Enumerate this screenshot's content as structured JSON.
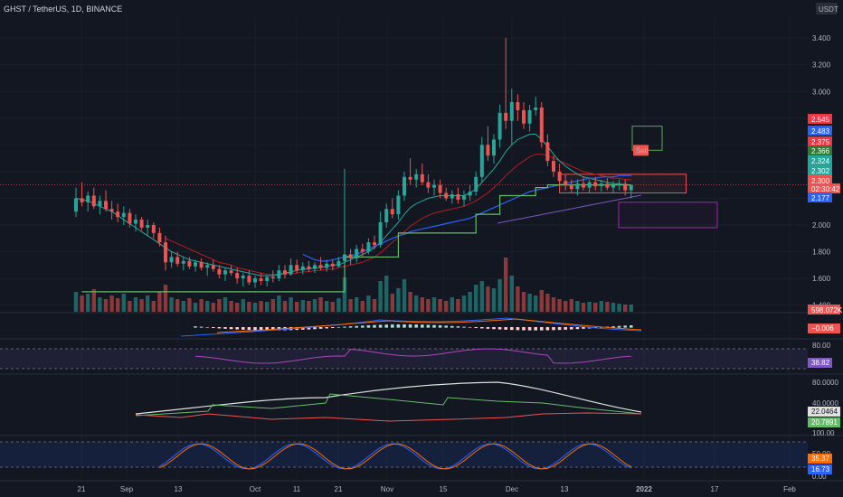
{
  "header": {
    "symbol_line": "GHST / TetherUS, 1D, BINANCE",
    "currency": "USDT"
  },
  "colors": {
    "background": "#131722",
    "up": "#26a69a",
    "down": "#ef5350",
    "grid": "#1e222d",
    "axis_text": "#b2b5be"
  },
  "chart_data": [
    {
      "type": "candlestick",
      "title": "",
      "price_axis": {
        "ticks": [
          1.4,
          1.6,
          1.8,
          2.0,
          2.2,
          2.4,
          2.6,
          2.8,
          3.0,
          3.2,
          3.4
        ],
        "tick_labels": [
          "1.400",
          "1.600",
          "1.800",
          "2.000",
          "2.200",
          "2.400",
          "2.600",
          "2.800",
          "3.000",
          "3.200",
          "3.400"
        ],
        "range": [
          1.35,
          3.55
        ],
        "top_partial_label": "3"
      },
      "time_axis": {
        "labels": [
          "21",
          "Sep",
          "13",
          "Oct",
          "11",
          "21",
          "Nov",
          "15",
          "Dec",
          "13",
          "2022",
          "17",
          "Feb"
        ]
      },
      "price_labels": [
        {
          "value": "2.545",
          "color": "#f23645"
        },
        {
          "value": "2.483",
          "color": "#2962ff"
        },
        {
          "value": "2.375",
          "color": "#f23645"
        },
        {
          "value": "2.366",
          "color": "#2e7d32"
        },
        {
          "value": "2.324",
          "color": "#26a69a"
        },
        {
          "value": "2.302",
          "color": "#26a69a"
        },
        {
          "value": "2.300",
          "color": "#ef5350"
        },
        {
          "value": "02:30:42",
          "color": "#ef5350"
        },
        {
          "value": "2.177",
          "color": "#2962ff"
        },
        {
          "value": "598.072K",
          "color": "#ef5350"
        }
      ],
      "annotation": "Sell",
      "candles": [
        [
          2.1,
          2.28,
          2.06,
          2.2
        ],
        [
          2.2,
          2.32,
          2.14,
          2.17
        ],
        [
          2.17,
          2.25,
          2.1,
          2.22
        ],
        [
          2.22,
          2.28,
          2.12,
          2.14
        ],
        [
          2.14,
          2.22,
          2.08,
          2.18
        ],
        [
          2.18,
          2.26,
          2.1,
          2.12
        ],
        [
          2.12,
          2.18,
          2.04,
          2.1
        ],
        [
          2.1,
          2.16,
          2.02,
          2.06
        ],
        [
          2.06,
          2.14,
          2.0,
          2.09
        ],
        [
          2.09,
          2.12,
          1.98,
          2.01
        ],
        [
          2.01,
          2.08,
          1.95,
          2.04
        ],
        [
          2.04,
          2.06,
          1.96,
          1.98
        ],
        [
          1.98,
          2.04,
          1.92,
          2.0
        ],
        [
          2.0,
          2.02,
          1.9,
          1.94
        ],
        [
          1.94,
          1.98,
          1.84,
          1.87
        ],
        [
          1.87,
          1.92,
          1.66,
          1.72
        ],
        [
          1.72,
          1.8,
          1.68,
          1.76
        ],
        [
          1.76,
          1.8,
          1.69,
          1.71
        ],
        [
          1.71,
          1.76,
          1.66,
          1.73
        ],
        [
          1.73,
          1.76,
          1.67,
          1.69
        ],
        [
          1.69,
          1.74,
          1.65,
          1.72
        ],
        [
          1.72,
          1.75,
          1.66,
          1.68
        ],
        [
          1.68,
          1.72,
          1.62,
          1.7
        ],
        [
          1.7,
          1.74,
          1.65,
          1.67
        ],
        [
          1.67,
          1.7,
          1.6,
          1.63
        ],
        [
          1.63,
          1.68,
          1.58,
          1.66
        ],
        [
          1.66,
          1.7,
          1.62,
          1.64
        ],
        [
          1.64,
          1.68,
          1.56,
          1.6
        ],
        [
          1.6,
          1.64,
          1.54,
          1.62
        ],
        [
          1.62,
          1.66,
          1.55,
          1.57
        ],
        [
          1.57,
          1.62,
          1.53,
          1.6
        ],
        [
          1.6,
          1.64,
          1.55,
          1.58
        ],
        [
          1.58,
          1.62,
          1.54,
          1.61
        ],
        [
          1.61,
          1.66,
          1.57,
          1.6
        ],
        [
          1.6,
          1.7,
          1.58,
          1.66
        ],
        [
          1.66,
          1.7,
          1.6,
          1.63
        ],
        [
          1.63,
          1.75,
          1.62,
          1.7
        ],
        [
          1.7,
          1.74,
          1.64,
          1.66
        ],
        [
          1.66,
          1.72,
          1.63,
          1.69
        ],
        [
          1.69,
          1.73,
          1.65,
          1.67
        ],
        [
          1.67,
          1.72,
          1.64,
          1.7
        ],
        [
          1.7,
          1.76,
          1.66,
          1.68
        ],
        [
          1.68,
          1.74,
          1.65,
          1.71
        ],
        [
          1.71,
          1.74,
          1.66,
          1.69
        ],
        [
          1.69,
          1.76,
          1.68,
          1.73
        ],
        [
          1.73,
          2.42,
          1.7,
          1.78
        ],
        [
          1.78,
          1.82,
          1.7,
          1.75
        ],
        [
          1.75,
          1.85,
          1.72,
          1.82
        ],
        [
          1.82,
          1.86,
          1.76,
          1.8
        ],
        [
          1.8,
          1.9,
          1.78,
          1.87
        ],
        [
          1.87,
          1.92,
          1.82,
          1.85
        ],
        [
          1.85,
          2.1,
          1.83,
          2.02
        ],
        [
          2.02,
          2.16,
          1.98,
          2.12
        ],
        [
          2.12,
          2.2,
          2.05,
          2.08
        ],
        [
          2.08,
          2.26,
          2.04,
          2.22
        ],
        [
          2.22,
          2.4,
          2.18,
          2.36
        ],
        [
          2.36,
          2.5,
          2.3,
          2.34
        ],
        [
          2.34,
          2.42,
          2.28,
          2.38
        ],
        [
          2.38,
          2.46,
          2.3,
          2.32
        ],
        [
          2.32,
          2.38,
          2.24,
          2.28
        ],
        [
          2.28,
          2.34,
          2.22,
          2.3
        ],
        [
          2.3,
          2.34,
          2.2,
          2.24
        ],
        [
          2.24,
          2.28,
          2.18,
          2.2
        ],
        [
          2.2,
          2.26,
          2.16,
          2.23
        ],
        [
          2.23,
          2.28,
          2.16,
          2.19
        ],
        [
          2.19,
          2.26,
          2.14,
          2.22
        ],
        [
          2.22,
          2.3,
          2.18,
          2.25
        ],
        [
          2.25,
          2.4,
          2.22,
          2.36
        ],
        [
          2.36,
          2.66,
          2.32,
          2.6
        ],
        [
          2.6,
          2.74,
          2.48,
          2.52
        ],
        [
          2.52,
          2.68,
          2.46,
          2.64
        ],
        [
          2.64,
          2.9,
          2.58,
          2.84
        ],
        [
          2.84,
          3.4,
          2.72,
          2.78
        ],
        [
          2.78,
          3.02,
          2.6,
          2.92
        ],
        [
          2.92,
          2.98,
          2.78,
          2.86
        ],
        [
          2.86,
          2.92,
          2.72,
          2.76
        ],
        [
          2.76,
          2.9,
          2.7,
          2.86
        ],
        [
          2.86,
          2.96,
          2.82,
          2.88
        ],
        [
          2.88,
          2.92,
          2.58,
          2.62
        ],
        [
          2.62,
          2.68,
          2.44,
          2.48
        ],
        [
          2.48,
          2.52,
          2.36,
          2.4
        ],
        [
          2.4,
          2.46,
          2.3,
          2.33
        ],
        [
          2.33,
          2.38,
          2.26,
          2.3
        ],
        [
          2.3,
          2.34,
          2.24,
          2.27
        ],
        [
          2.27,
          2.34,
          2.22,
          2.31
        ],
        [
          2.31,
          2.36,
          2.26,
          2.28
        ],
        [
          2.28,
          2.34,
          2.24,
          2.32
        ],
        [
          2.32,
          2.36,
          2.26,
          2.29
        ],
        [
          2.29,
          2.34,
          2.25,
          2.31
        ],
        [
          2.31,
          2.35,
          2.26,
          2.28
        ],
        [
          2.28,
          2.33,
          2.24,
          2.3
        ],
        [
          2.3,
          2.34,
          2.26,
          2.31
        ],
        [
          2.31,
          2.34,
          2.22,
          2.26
        ],
        [
          2.26,
          2.3,
          2.2,
          2.3
        ]
      ],
      "volumes": [
        22,
        18,
        20,
        25,
        16,
        14,
        18,
        15,
        20,
        12,
        16,
        14,
        18,
        12,
        22,
        30,
        16,
        14,
        12,
        15,
        10,
        14,
        12,
        10,
        14,
        16,
        12,
        10,
        14,
        11,
        10,
        12,
        11,
        14,
        18,
        12,
        16,
        11,
        13,
        12,
        14,
        16,
        12,
        11,
        15,
        38,
        14,
        16,
        12,
        18,
        14,
        34,
        40,
        20,
        26,
        36,
        22,
        18,
        16,
        14,
        16,
        14,
        12,
        16,
        14,
        18,
        22,
        30,
        34,
        28,
        26,
        36,
        60,
        40,
        28,
        22,
        20,
        18,
        24,
        20,
        16,
        14,
        12,
        14,
        12,
        10,
        11,
        10,
        12,
        11,
        10,
        9,
        8,
        8
      ],
      "sma_line": [
        2.2,
        2.19,
        2.18,
        2.16,
        2.14,
        2.12,
        2.1,
        2.07,
        2.04,
        2.01,
        1.98,
        1.95,
        1.92,
        1.89,
        1.86,
        1.83,
        1.8,
        1.78,
        1.76,
        1.74,
        1.73,
        1.72,
        1.71,
        1.7,
        1.69,
        1.68,
        1.67,
        1.66,
        1.65,
        1.64,
        1.63,
        1.62,
        1.62,
        1.62,
        1.63,
        1.64,
        1.65,
        1.66,
        1.67,
        1.67,
        1.68,
        1.68,
        1.69,
        1.7,
        1.7,
        1.72,
        1.74,
        1.76,
        1.78,
        1.8,
        1.83,
        1.87,
        1.92,
        1.97,
        2.02,
        2.08,
        2.13,
        2.16,
        2.18,
        2.2,
        2.21,
        2.22,
        2.22,
        2.22,
        2.22,
        2.22,
        2.24,
        2.27,
        2.32,
        2.37,
        2.42,
        2.48,
        2.55,
        2.6,
        2.64,
        2.66,
        2.68,
        2.68,
        2.64,
        2.59,
        2.53,
        2.48,
        2.44,
        2.41,
        2.38,
        2.36,
        2.35,
        2.34,
        2.33,
        2.32,
        2.31,
        2.31,
        2.3,
        2.3
      ],
      "ema_line": [
        null,
        null,
        null,
        null,
        null,
        null,
        null,
        null,
        null,
        null,
        null,
        null,
        null,
        null,
        null,
        1.9,
        1.88,
        1.86,
        1.84,
        1.82,
        1.8,
        1.78,
        1.76,
        1.74,
        1.72,
        1.71,
        1.7,
        1.68,
        1.67,
        1.66,
        1.65,
        1.64,
        1.63,
        1.63,
        1.63,
        1.63,
        1.64,
        1.64,
        1.65,
        1.65,
        1.66,
        1.66,
        1.67,
        1.67,
        1.68,
        1.69,
        1.7,
        1.71,
        1.72,
        1.74,
        1.76,
        1.79,
        1.83,
        1.87,
        1.91,
        1.95,
        1.99,
        2.02,
        2.05,
        2.07,
        2.09,
        2.1,
        2.11,
        2.12,
        2.13,
        2.14,
        2.16,
        2.18,
        2.21,
        2.24,
        2.28,
        2.32,
        2.37,
        2.41,
        2.45,
        2.48,
        2.51,
        2.53,
        2.53,
        2.52,
        2.5,
        2.48,
        2.46,
        2.44,
        2.42,
        2.4,
        2.39,
        2.38,
        2.37,
        2.36,
        2.35,
        2.35,
        2.34,
        2.34
      ],
      "trend_line": [
        null,
        null,
        null,
        null,
        null,
        null,
        null,
        null,
        null,
        null,
        null,
        null,
        null,
        null,
        null,
        null,
        null,
        null,
        null,
        null,
        null,
        null,
        null,
        null,
        null,
        null,
        null,
        null,
        null,
        null,
        null,
        null,
        null,
        null,
        null,
        null,
        null,
        null,
        1.78,
        1.76,
        1.74,
        1.73,
        1.73,
        1.74,
        1.75,
        1.76,
        1.77,
        1.78,
        1.8,
        1.82,
        1.84,
        1.86,
        1.88,
        1.9,
        1.92,
        1.93,
        1.95,
        1.96,
        1.97,
        1.98,
        1.99,
        2.0,
        2.01,
        2.02,
        2.03,
        2.04,
        2.05,
        2.07,
        2.09,
        2.11,
        2.13,
        2.15,
        2.17,
        2.19,
        2.21,
        2.23,
        2.25,
        2.26,
        2.27,
        2.28,
        2.29,
        2.3,
        2.31,
        2.32,
        2.33,
        2.34,
        2.35,
        2.35,
        2.36,
        2.36,
        2.36,
        2.37,
        2.37,
        2.37
      ],
      "step_line": [
        1.5,
        1.5,
        1.5,
        1.5,
        1.5,
        1.5,
        1.5,
        1.5,
        1.5,
        1.5,
        1.5,
        1.5,
        1.5,
        1.5,
        1.5,
        1.5,
        1.5,
        1.5,
        1.5,
        1.5,
        1.5,
        1.5,
        1.5,
        1.5,
        1.5,
        1.5,
        1.5,
        1.5,
        1.5,
        1.5,
        1.5,
        1.5,
        1.5,
        1.5,
        1.5,
        1.5,
        1.5,
        1.5,
        1.5,
        1.5,
        1.5,
        1.5,
        1.5,
        1.5,
        1.5,
        1.76,
        1.76,
        1.76,
        1.76,
        1.76,
        1.76,
        1.76,
        1.76,
        1.76,
        1.94,
        1.94,
        1.94,
        1.94,
        1.94,
        1.94,
        1.94,
        1.94,
        1.94,
        1.94,
        1.94,
        1.94,
        1.94,
        2.08,
        2.08,
        2.08,
        2.08,
        2.22,
        2.22,
        2.22,
        2.22,
        2.22,
        2.22,
        2.28,
        2.28,
        2.3,
        2.3,
        2.3,
        2.3,
        2.3,
        2.3,
        2.3,
        2.3,
        2.3,
        2.3,
        2.3,
        2.3,
        2.3,
        2.3,
        2.3
      ]
    },
    {
      "type": "histogram",
      "name": "macd",
      "value_label": "−0.006"
    },
    {
      "type": "line",
      "name": "rsi",
      "ticks": [
        "80.00"
      ],
      "value_label": "38.82"
    },
    {
      "type": "line",
      "name": "dmi",
      "ticks": [
        "80.0000",
        "40.0000"
      ],
      "value_labels": [
        "22.0464",
        "20.7891"
      ]
    },
    {
      "type": "line",
      "name": "stoch",
      "ticks": [
        "100.00",
        "0.00"
      ],
      "value_labels": [
        "35.37",
        "16.73"
      ],
      "partial_label": "50.00"
    }
  ]
}
